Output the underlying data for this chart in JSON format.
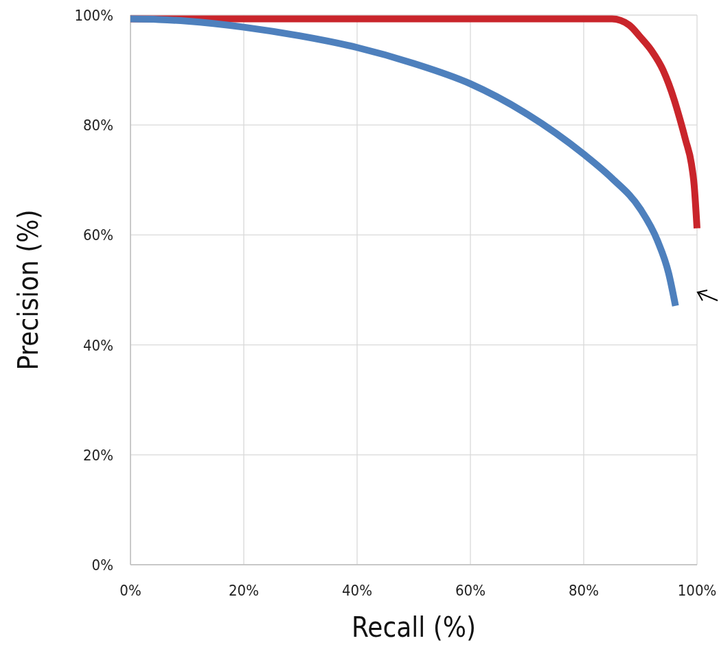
{
  "chart_data": {
    "type": "line",
    "xlabel": "Recall (%)",
    "ylabel": "Precision (%)",
    "xlim": [
      0,
      100
    ],
    "ylim": [
      0,
      100
    ],
    "xticks": [
      {
        "value": 0,
        "label": "0%"
      },
      {
        "value": 20,
        "label": "20%"
      },
      {
        "value": 40,
        "label": "40%"
      },
      {
        "value": 60,
        "label": "60%"
      },
      {
        "value": 80,
        "label": "80%"
      },
      {
        "value": 100,
        "label": "100%"
      }
    ],
    "yticks": [
      {
        "value": 0,
        "label": "0%"
      },
      {
        "value": 20,
        "label": "20%"
      },
      {
        "value": 40,
        "label": "40%"
      },
      {
        "value": 60,
        "label": "60%"
      },
      {
        "value": 80,
        "label": "80%"
      },
      {
        "value": 100,
        "label": "100%"
      }
    ],
    "grid": true,
    "marker": "none",
    "line_style": "solid",
    "series": [
      {
        "color": "#c9252b",
        "x": [
          0,
          20,
          40,
          60,
          80,
          85,
          88,
          90,
          92,
          94,
          95,
          96,
          97,
          98,
          99,
          99.5,
          100
        ],
        "values": [
          99.3,
          99.3,
          99.3,
          99.3,
          99.3,
          99.3,
          98.2,
          96,
          93.5,
          90,
          87.5,
          84.5,
          81,
          77.2,
          73,
          69,
          61.2
        ]
      },
      {
        "color": "#4e80bd",
        "x": [
          0,
          5,
          10,
          20,
          30,
          40,
          50,
          60,
          70,
          80,
          85,
          90,
          93,
          95,
          96.2
        ],
        "values": [
          99.3,
          99.2,
          98.9,
          97.8,
          96.2,
          94.1,
          91.2,
          87.5,
          82,
          74.7,
          70.3,
          64.7,
          59,
          53,
          47.1
        ]
      }
    ]
  }
}
